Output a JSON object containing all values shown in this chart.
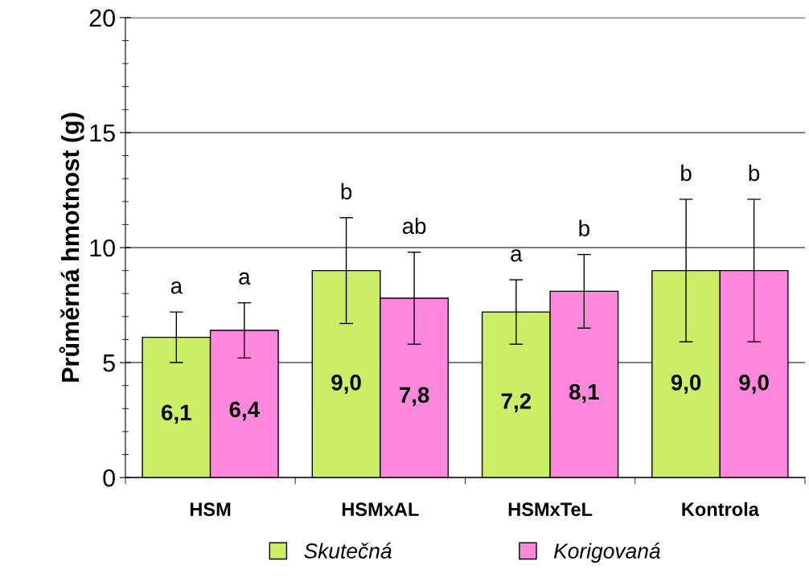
{
  "chart_data": {
    "type": "bar",
    "ylabel": "Průměrná hmotnost (g)",
    "categories": [
      "HSM",
      "HSMxAL",
      "HSMxTeL",
      "Kontrola"
    ],
    "series": [
      {
        "name": "Skutečná",
        "color": "#ccee66",
        "values": [
          6.1,
          9.0,
          7.2,
          9.0
        ],
        "errors": [
          1.1,
          2.3,
          1.4,
          3.1
        ],
        "value_labels": [
          "6,1",
          "9,0",
          "7,2",
          "9,0"
        ]
      },
      {
        "name": "Korigovaná",
        "color": "#ff88dd",
        "values": [
          6.4,
          7.8,
          8.1,
          9.0
        ],
        "errors": [
          1.2,
          2.0,
          1.6,
          3.1
        ],
        "value_labels": [
          "6,4",
          "7,8",
          "8,1",
          "9,0"
        ]
      }
    ],
    "annotations": [
      "a",
      "a",
      "b",
      "ab",
      "a",
      "b",
      "b",
      "b"
    ],
    "ylim": [
      0,
      20
    ],
    "yticks": [
      0,
      5,
      10,
      15,
      20
    ],
    "grid": "y",
    "legend": "bottom"
  }
}
